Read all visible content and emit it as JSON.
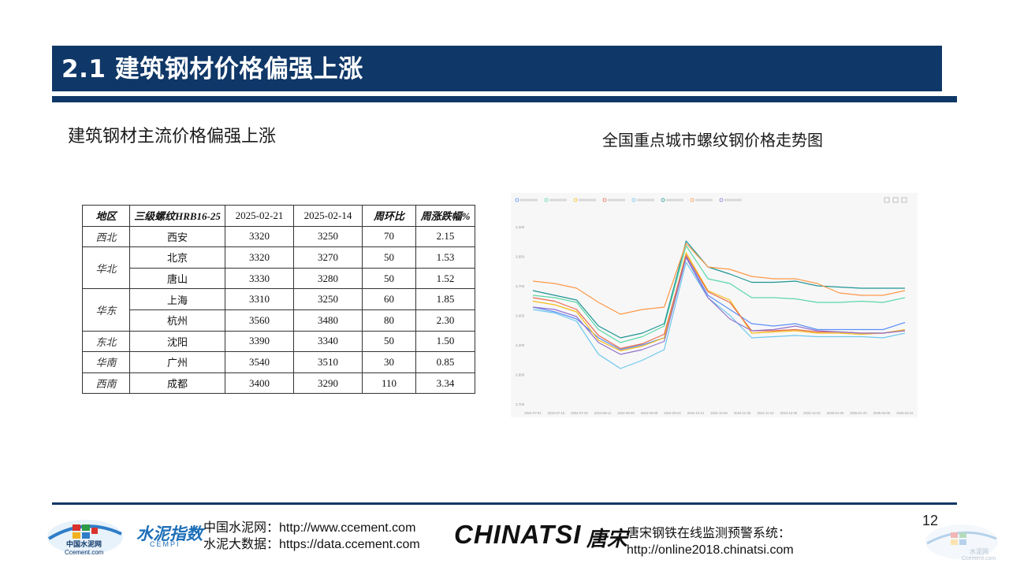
{
  "header": {
    "title": "2.1 建筑钢材价格偏强上涨"
  },
  "left": {
    "subtitle": "建筑钢材主流价格偏强上涨"
  },
  "table": {
    "headers": [
      "地区",
      "三级螺纹HRB16-25",
      "2025-02-21",
      "2025-02-14",
      "周环比",
      "周涨跌幅%"
    ],
    "rows": [
      {
        "region": "西北",
        "city": "西安",
        "p1": "3320",
        "p2": "3250",
        "wow": "70",
        "pct": "2.15"
      },
      {
        "region": "华北",
        "city": "北京",
        "p1": "3320",
        "p2": "3270",
        "wow": "50",
        "pct": "1.53"
      },
      {
        "region": "",
        "city": "唐山",
        "p1": "3330",
        "p2": "3280",
        "wow": "50",
        "pct": "1.52"
      },
      {
        "region": "华东",
        "city": "上海",
        "p1": "3310",
        "p2": "3250",
        "wow": "60",
        "pct": "1.85"
      },
      {
        "region": "",
        "city": "杭州",
        "p1": "3560",
        "p2": "3480",
        "wow": "80",
        "pct": "2.30"
      },
      {
        "region": "东北",
        "city": "沈阳",
        "p1": "3390",
        "p2": "3340",
        "wow": "50",
        "pct": "1.50"
      },
      {
        "region": "华南",
        "city": "广州",
        "p1": "3540",
        "p2": "3510",
        "wow": "30",
        "pct": "0.85"
      },
      {
        "region": "西南",
        "city": "成都",
        "p1": "3400",
        "p2": "3290",
        "wow": "110",
        "pct": "3.34"
      }
    ]
  },
  "chart_title": "全国重点城市螺纹钢价格走势图",
  "chart_data": {
    "type": "line",
    "title": "全国重点城市螺纹钢价格走势图",
    "xlabel": "",
    "ylabel": "",
    "x": [
      "2024-07-01",
      "2024-07-15",
      "2024-07-29",
      "2024-08-12",
      "2024-08-26",
      "2024-09-09",
      "2024-09-23",
      "2024-10-08",
      "2024-10-21",
      "2024-11-04",
      "2024-11-18",
      "2024-12-02",
      "2024-12-16",
      "2024-12-30",
      "2025-01-13",
      "2025-01-27",
      "2025-02-10",
      "2025-02-21"
    ],
    "x_tick_labels": [
      "2024-07-01",
      "2024-07-15",
      "2024-07-29",
      "2024-08-12",
      "2024-08-26",
      "2024-09-09",
      "2024-09-24",
      "2024-10-12",
      "2024-10-29",
      "2024-11-08",
      "2024-11-22",
      "2024-12-06",
      "2024-12-20",
      "2025-01-06",
      "2025-01-20",
      "2025-02-08",
      "2025-02-21"
    ],
    "ylim": [
      2700,
      4300
    ],
    "y_ticks": [
      2700,
      2950,
      3200,
      3450,
      3700,
      3950,
      4200
    ],
    "grid": false,
    "legend_position": "top",
    "series": [
      {
        "color": "#5b8ff9",
        "values": [
          3520,
          3480,
          3420,
          3260,
          3160,
          3200,
          3260,
          3950,
          3620,
          3500,
          3380,
          3360,
          3380,
          3330,
          3330,
          3330,
          3330,
          3390
        ]
      },
      {
        "color": "#5ad8a6",
        "values": [
          3620,
          3600,
          3560,
          3330,
          3220,
          3270,
          3360,
          4040,
          3760,
          3720,
          3600,
          3600,
          3590,
          3560,
          3560,
          3570,
          3560,
          3600
        ]
      },
      {
        "color": "#f6bd16",
        "values": [
          3570,
          3540,
          3480,
          3240,
          3150,
          3190,
          3260,
          3980,
          3660,
          3580,
          3300,
          3310,
          3320,
          3300,
          3300,
          3290,
          3300,
          3330
        ]
      },
      {
        "color": "#e8684a",
        "values": [
          3600,
          3570,
          3500,
          3280,
          3170,
          3210,
          3290,
          3960,
          3650,
          3560,
          3320,
          3320,
          3330,
          3310,
          3310,
          3300,
          3300,
          3320
        ]
      },
      {
        "color": "#6dc8ec",
        "values": [
          3500,
          3470,
          3400,
          3120,
          3000,
          3070,
          3160,
          3900,
          3600,
          3450,
          3260,
          3270,
          3280,
          3270,
          3270,
          3270,
          3260,
          3300
        ]
      },
      {
        "color": "#1e9493",
        "values": [
          3660,
          3620,
          3580,
          3360,
          3260,
          3300,
          3380,
          4080,
          3860,
          3800,
          3730,
          3730,
          3740,
          3700,
          3690,
          3680,
          3680,
          3680
        ]
      },
      {
        "color": "#ff9845",
        "values": [
          3740,
          3720,
          3680,
          3560,
          3460,
          3500,
          3520,
          4060,
          3860,
          3840,
          3780,
          3760,
          3760,
          3720,
          3640,
          3620,
          3620,
          3660
        ]
      },
      {
        "color": "#9270ca",
        "values": [
          3520,
          3500,
          3440,
          3220,
          3120,
          3160,
          3230,
          3940,
          3600,
          3420,
          3320,
          3330,
          3360,
          3320,
          3310,
          3300,
          3300,
          3320
        ]
      }
    ]
  },
  "footer": {
    "ccement_line1": "中国水泥网：http://www.ccement.com",
    "ccement_line2": "水泥大数据：https://data.ccement.com",
    "logo_cn": "中国水泥网",
    "logo_en": "Ccement.com",
    "cempi_text": "水泥指数",
    "cempi_sub": "CEMPI",
    "chinatsi": "CHINATSI",
    "chinatsi_cn": "唐宋",
    "tangsong_line1": "唐宋钢铁在线监测预警系统：",
    "tangsong_line2": "http://online2018.chinatsi.com",
    "page_number": "12",
    "watermark_cn": "水泥网",
    "watermark_en": "Ccement.com"
  },
  "colors": {
    "brand_navy": "#0f3767",
    "chart_bg": "#f7f7f8"
  }
}
